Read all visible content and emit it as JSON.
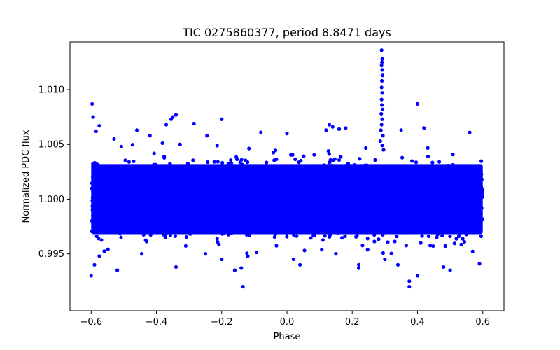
{
  "chart_data": {
    "type": "scatter",
    "title": "TIC 0275860377, period 8.8471 days",
    "xlabel": "Phase",
    "ylabel": "Normalized PDC flux",
    "xlim": [
      -0.665,
      0.665
    ],
    "ylim": [
      0.9898,
      1.01435
    ],
    "x_ticks": [
      -0.6,
      -0.4,
      -0.2,
      0.0,
      0.2,
      0.4,
      0.6
    ],
    "x_tick_labels": [
      "−0.6",
      "−0.4",
      "−0.2",
      "0.0",
      "0.2",
      "0.4",
      "0.6"
    ],
    "y_ticks": [
      0.995,
      1.0,
      1.005,
      1.01
    ],
    "y_tick_labels": [
      "0.995",
      "1.000",
      "1.005",
      "1.010"
    ],
    "marker_color": "#0000ff",
    "grid": false,
    "series": [
      {
        "name": "PDC flux (dense band)",
        "description_kind": "band",
        "x_range": [
          -0.6,
          0.6
        ],
        "y_core": [
          0.9968,
          1.0032
        ],
        "y_scatter_sigma": 0.0012
      },
      {
        "name": "PDC flux (outliers)",
        "points": [
          [
            -0.597,
            1.0087
          ],
          [
            -0.594,
            1.0075
          ],
          [
            -0.585,
            1.0062
          ],
          [
            -0.575,
            1.0067
          ],
          [
            -0.53,
            1.0055
          ],
          [
            -0.46,
            1.0063
          ],
          [
            -0.42,
            1.0058
          ],
          [
            -0.37,
            1.0068
          ],
          [
            -0.355,
            1.0073
          ],
          [
            -0.35,
            1.0075
          ],
          [
            -0.34,
            1.0077
          ],
          [
            -0.285,
            1.0069
          ],
          [
            -0.245,
            1.0058
          ],
          [
            -0.2,
            1.0073
          ],
          [
            -0.08,
            1.0061
          ],
          [
            0.0,
            1.006
          ],
          [
            0.12,
            1.0063
          ],
          [
            0.13,
            1.0068
          ],
          [
            0.14,
            1.0066
          ],
          [
            0.16,
            1.0064
          ],
          [
            0.18,
            1.0065
          ],
          [
            0.35,
            1.0063
          ],
          [
            0.4,
            1.0087
          ],
          [
            0.42,
            1.0065
          ],
          [
            0.56,
            1.0061
          ],
          [
            -0.6,
            0.993
          ],
          [
            -0.59,
            0.994
          ],
          [
            -0.575,
            0.9948
          ],
          [
            -0.52,
            0.9935
          ],
          [
            -0.445,
            0.995
          ],
          [
            -0.34,
            0.9938
          ],
          [
            -0.25,
            0.995
          ],
          [
            -0.2,
            0.9945
          ],
          [
            -0.16,
            0.9935
          ],
          [
            -0.14,
            0.9937
          ],
          [
            -0.135,
            0.992
          ],
          [
            -0.12,
            0.9948
          ],
          [
            0.02,
            0.9945
          ],
          [
            0.04,
            0.994
          ],
          [
            0.15,
            0.995
          ],
          [
            0.22,
            0.994
          ],
          [
            0.22,
            0.9937
          ],
          [
            0.3,
            0.9945
          ],
          [
            0.34,
            0.994
          ],
          [
            0.375,
            0.9925
          ],
          [
            0.375,
            0.992
          ],
          [
            0.4,
            0.993
          ],
          [
            0.48,
            0.9938
          ],
          [
            0.5,
            0.9935
          ],
          [
            0.59,
            0.9941
          ]
        ]
      },
      {
        "name": "Flare near phase 0.29",
        "points": [
          [
            0.29,
            1.0136
          ],
          [
            0.292,
            1.0128
          ],
          [
            0.291,
            1.0125
          ],
          [
            0.29,
            1.0122
          ],
          [
            0.292,
            1.0118
          ],
          [
            0.293,
            1.0113
          ],
          [
            0.291,
            1.0108
          ],
          [
            0.29,
            1.0102
          ],
          [
            0.292,
            1.0097
          ],
          [
            0.29,
            1.0091
          ],
          [
            0.291,
            1.0086
          ],
          [
            0.293,
            1.0082
          ],
          [
            0.289,
            1.0078
          ],
          [
            0.292,
            1.0073
          ],
          [
            0.29,
            1.0068
          ],
          [
            0.288,
            1.0063
          ],
          [
            0.294,
            1.0058
          ],
          [
            0.286,
            1.0053
          ],
          [
            0.292,
            1.0049
          ],
          [
            0.296,
            1.0045
          ]
        ]
      }
    ]
  }
}
